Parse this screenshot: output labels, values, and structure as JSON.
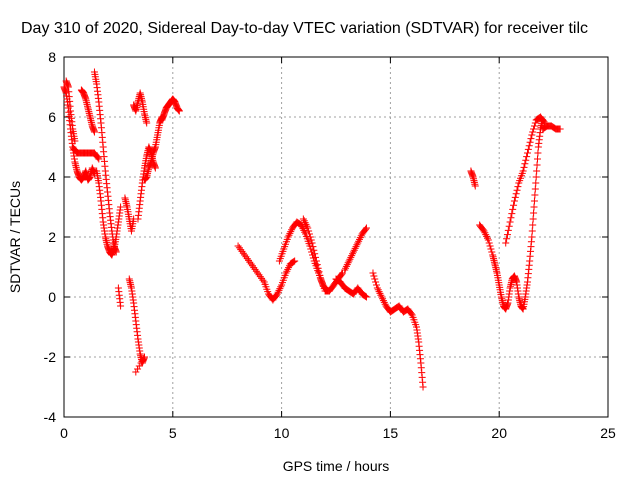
{
  "chart_data": {
    "type": "scatter",
    "title": "Day 310 of 2020, Sidereal Day-to-day VTEC variation (SDTVAR) for receiver tilc",
    "xlabel": "GPS time / hours",
    "ylabel": "SDTVAR / TECUs",
    "xlim": [
      0,
      25
    ],
    "ylim": [
      -4,
      8
    ],
    "xticks": [
      "0",
      "5",
      "10",
      "15",
      "20",
      "25"
    ],
    "yticks": [
      "-4",
      "-2",
      "0",
      "2",
      "4",
      "6",
      "8"
    ],
    "grid": true,
    "marker": "plus",
    "color": "#ff0000",
    "series": [
      {
        "name": "SDTVAR",
        "segments": [
          [
            [
              0.0,
              7.0
            ],
            [
              0.1,
              6.8
            ],
            [
              0.2,
              6.3
            ],
            [
              0.3,
              5.6
            ],
            [
              0.4,
              5.0
            ],
            [
              0.5,
              4.5
            ],
            [
              0.6,
              4.2
            ],
            [
              0.7,
              4.0
            ],
            [
              0.8,
              3.9
            ],
            [
              0.9,
              4.0
            ],
            [
              1.0,
              4.2
            ],
            [
              1.1,
              3.9
            ],
            [
              1.2,
              4.0
            ],
            [
              1.3,
              4.3
            ],
            [
              1.4,
              4.1
            ]
          ],
          [
            [
              0.1,
              7.2
            ],
            [
              0.2,
              7.0
            ],
            [
              0.3,
              6.2
            ],
            [
              0.4,
              5.6
            ],
            [
              0.5,
              5.2
            ]
          ],
          [
            [
              0.4,
              5.0
            ],
            [
              0.6,
              4.8
            ],
            [
              0.8,
              4.8
            ],
            [
              1.0,
              4.8
            ],
            [
              1.2,
              4.8
            ],
            [
              1.4,
              4.8
            ],
            [
              1.6,
              4.6
            ]
          ],
          [
            [
              0.8,
              6.9
            ],
            [
              0.9,
              6.8
            ],
            [
              1.0,
              6.6
            ],
            [
              1.1,
              6.3
            ],
            [
              1.2,
              6.0
            ],
            [
              1.3,
              5.7
            ],
            [
              1.4,
              5.5
            ]
          ],
          [
            [
              1.4,
              7.5
            ],
            [
              1.5,
              7.1
            ],
            [
              1.6,
              6.5
            ],
            [
              1.7,
              5.8
            ],
            [
              1.8,
              5.0
            ],
            [
              1.9,
              4.2
            ],
            [
              2.0,
              3.5
            ],
            [
              2.1,
              2.8
            ],
            [
              2.2,
              2.2
            ],
            [
              2.3,
              1.7
            ],
            [
              2.4,
              1.5
            ]
          ],
          [
            [
              1.5,
              4.2
            ],
            [
              1.6,
              3.8
            ],
            [
              1.7,
              3.2
            ],
            [
              1.8,
              2.5
            ],
            [
              1.9,
              2.0
            ],
            [
              2.0,
              1.7
            ],
            [
              2.1,
              1.5
            ],
            [
              2.2,
              1.4
            ],
            [
              2.3,
              1.6
            ],
            [
              2.4,
              2.0
            ],
            [
              2.5,
              2.5
            ],
            [
              2.6,
              3.0
            ]
          ],
          [
            [
              2.5,
              0.3
            ],
            [
              2.6,
              -0.3
            ]
          ],
          [
            [
              3.0,
              0.6
            ],
            [
              3.1,
              0.3
            ],
            [
              3.2,
              -0.2
            ],
            [
              3.3,
              -0.8
            ],
            [
              3.4,
              -1.4
            ],
            [
              3.5,
              -1.9
            ],
            [
              3.6,
              -2.2
            ],
            [
              3.7,
              -2.0
            ],
            [
              3.3,
              -2.5
            ]
          ],
          [
            [
              2.8,
              3.3
            ],
            [
              2.9,
              3.0
            ],
            [
              3.0,
              2.6
            ],
            [
              3.1,
              2.2
            ],
            [
              3.2,
              2.6
            ]
          ],
          [
            [
              3.2,
              6.4
            ],
            [
              3.3,
              6.2
            ],
            [
              3.4,
              6.5
            ],
            [
              3.5,
              6.8
            ],
            [
              3.6,
              6.5
            ],
            [
              3.7,
              6.1
            ],
            [
              3.8,
              5.8
            ]
          ],
          [
            [
              3.4,
              2.6
            ],
            [
              3.5,
              3.2
            ],
            [
              3.6,
              3.8
            ],
            [
              3.7,
              4.3
            ],
            [
              3.8,
              4.7
            ],
            [
              3.9,
              5.0
            ],
            [
              4.0,
              4.8
            ],
            [
              4.1,
              4.5
            ],
            [
              4.2,
              4.3
            ]
          ],
          [
            [
              3.7,
              3.9
            ],
            [
              3.8,
              4.0
            ],
            [
              3.9,
              4.3
            ],
            [
              4.0,
              4.5
            ],
            [
              4.1,
              4.8
            ],
            [
              4.2,
              5.0
            ],
            [
              4.3,
              5.4
            ],
            [
              4.4,
              5.8
            ],
            [
              4.5,
              6.0
            ]
          ],
          [
            [
              4.5,
              5.9
            ],
            [
              4.6,
              6.1
            ],
            [
              4.7,
              6.3
            ],
            [
              4.8,
              6.4
            ],
            [
              4.9,
              6.5
            ],
            [
              5.0,
              6.6
            ],
            [
              5.1,
              6.5
            ],
            [
              5.2,
              6.3
            ],
            [
              5.3,
              6.2
            ]
          ],
          [
            [
              8.0,
              1.7
            ],
            [
              8.3,
              1.4
            ],
            [
              8.6,
              1.1
            ],
            [
              8.9,
              0.8
            ],
            [
              9.2,
              0.5
            ],
            [
              9.4,
              0.1
            ],
            [
              9.6,
              -0.1
            ],
            [
              9.8,
              0.1
            ],
            [
              10.0,
              0.4
            ],
            [
              10.2,
              0.8
            ],
            [
              10.4,
              1.1
            ],
            [
              10.6,
              1.2
            ]
          ],
          [
            [
              9.9,
              1.2
            ],
            [
              10.1,
              1.6
            ],
            [
              10.3,
              2.0
            ],
            [
              10.5,
              2.3
            ],
            [
              10.7,
              2.5
            ],
            [
              10.9,
              2.4
            ],
            [
              11.1,
              2.1
            ],
            [
              11.3,
              1.7
            ],
            [
              11.5,
              1.2
            ],
            [
              11.7,
              0.8
            ],
            [
              11.9,
              0.4
            ],
            [
              12.1,
              0.2
            ]
          ],
          [
            [
              11.0,
              2.6
            ],
            [
              11.2,
              2.3
            ],
            [
              11.4,
              1.8
            ],
            [
              11.6,
              1.2
            ],
            [
              11.8,
              0.6
            ],
            [
              12.0,
              0.2
            ],
            [
              12.2,
              0.2
            ],
            [
              12.4,
              0.4
            ],
            [
              12.6,
              0.6
            ],
            [
              12.8,
              0.8
            ]
          ],
          [
            [
              12.5,
              0.6
            ],
            [
              12.7,
              0.5
            ],
            [
              12.9,
              0.3
            ],
            [
              13.1,
              0.2
            ],
            [
              13.3,
              0.1
            ],
            [
              13.5,
              0.3
            ],
            [
              13.7,
              0.1
            ],
            [
              13.9,
              0.0
            ]
          ],
          [
            [
              12.9,
              0.9
            ],
            [
              13.1,
              1.2
            ],
            [
              13.3,
              1.5
            ],
            [
              13.5,
              1.8
            ],
            [
              13.7,
              2.1
            ],
            [
              13.9,
              2.3
            ]
          ],
          [
            [
              14.2,
              0.8
            ],
            [
              14.4,
              0.3
            ],
            [
              14.6,
              0.0
            ],
            [
              14.8,
              -0.3
            ],
            [
              15.0,
              -0.5
            ],
            [
              15.2,
              -0.4
            ],
            [
              15.4,
              -0.3
            ],
            [
              15.6,
              -0.5
            ],
            [
              15.8,
              -0.4
            ],
            [
              16.0,
              -0.6
            ],
            [
              16.2,
              -1.0
            ],
            [
              16.3,
              -1.5
            ],
            [
              16.4,
              -2.2
            ],
            [
              16.5,
              -3.0
            ]
          ],
          [
            [
              18.7,
              4.2
            ],
            [
              18.8,
              4.0
            ],
            [
              18.9,
              3.7
            ]
          ],
          [
            [
              19.1,
              2.4
            ],
            [
              19.3,
              2.2
            ],
            [
              19.5,
              1.9
            ],
            [
              19.7,
              1.4
            ],
            [
              19.8,
              1.1
            ],
            [
              19.9,
              0.8
            ],
            [
              20.0,
              0.4
            ],
            [
              20.1,
              0.0
            ],
            [
              20.2,
              -0.3
            ],
            [
              20.3,
              -0.4
            ],
            [
              20.4,
              -0.2
            ],
            [
              20.5,
              0.3
            ],
            [
              20.6,
              0.6
            ],
            [
              20.7,
              0.7
            ],
            [
              20.8,
              0.5
            ],
            [
              20.9,
              0.0
            ],
            [
              21.0,
              -0.3
            ],
            [
              21.1,
              -0.4
            ],
            [
              21.2,
              0.0
            ],
            [
              21.3,
              0.5
            ],
            [
              21.4,
              1.2
            ],
            [
              21.5,
              2.0
            ],
            [
              21.6,
              3.0
            ],
            [
              21.7,
              4.0
            ],
            [
              21.8,
              5.0
            ],
            [
              21.9,
              5.6
            ],
            [
              22.0,
              5.9
            ]
          ],
          [
            [
              20.3,
              1.8
            ],
            [
              20.5,
              2.5
            ],
            [
              20.7,
              3.2
            ],
            [
              20.9,
              3.8
            ],
            [
              21.1,
              4.2
            ],
            [
              21.3,
              4.8
            ],
            [
              21.5,
              5.4
            ],
            [
              21.7,
              5.9
            ],
            [
              21.9,
              6.0
            ],
            [
              22.1,
              5.8
            ]
          ],
          [
            [
              22.0,
              5.6
            ],
            [
              22.2,
              5.7
            ],
            [
              22.4,
              5.7
            ],
            [
              22.6,
              5.6
            ],
            [
              22.8,
              5.6
            ]
          ]
        ]
      }
    ]
  }
}
